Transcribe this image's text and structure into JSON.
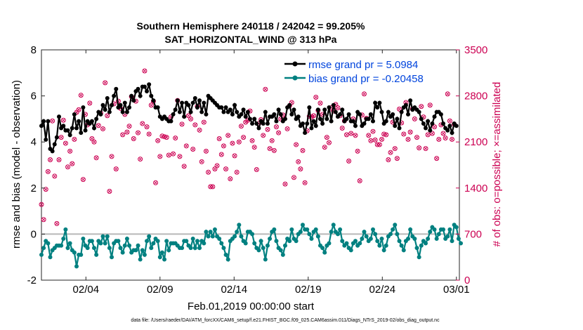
{
  "chart_data": {
    "type": "line",
    "title": [
      "Southern Hemisphere 240118 / 242042 = 99.205%",
      "SAT_HORIZONTAL_WIND @ 313 hPa"
    ],
    "xlabel": "Feb.01,2019 00:00:00 start",
    "ylabel_left": "rmse and bias (model - observation)",
    "ylabel_right": "# of obs: o=possible; ×=assimilated",
    "footer": "data file: /Users/raeder/DAI/ATM_forcXX/CAM6_setup/f.e21.FHIST_BGC.f09_025.CAM6assim.011/Diags_NTrS_2019-02/obs_diag_output.nc",
    "x_range": [
      0,
      28.2
    ],
    "ylim_left": [
      -2,
      8
    ],
    "ylim_right": [
      0,
      3500
    ],
    "x_ticks": [
      {
        "x": 3,
        "label": "02/04"
      },
      {
        "x": 8,
        "label": "02/09"
      },
      {
        "x": 13,
        "label": "02/14"
      },
      {
        "x": 18,
        "label": "02/19"
      },
      {
        "x": 23,
        "label": "02/24"
      },
      {
        "x": 28,
        "label": "03/01"
      }
    ],
    "y_ticks_left": [
      -2,
      0,
      2,
      4,
      6,
      8
    ],
    "y_ticks_right": [
      0,
      700,
      1400,
      2100,
      2800,
      3500
    ],
    "colors": {
      "rmse": "#000000",
      "bias": "#008080",
      "count": "#cc0052",
      "legend_text": "#0044dd",
      "zero_line": "#b8b8b8"
    },
    "series": [
      {
        "name": "rmse grand pr = 5.0984",
        "axis": "left",
        "values": [
          4.7,
          4.9,
          4.1,
          4.9,
          3.7,
          3.6,
          3.9,
          4.2,
          5.1,
          4.6,
          4.7,
          4.5,
          4.5,
          4.3,
          4.6,
          5.2,
          4.6,
          4.9,
          4.4,
          5.5,
          4.5,
          4.9,
          4.8,
          4.9,
          4.6,
          5.0,
          5.3,
          5.2,
          5.6,
          5.4,
          5.9,
          5.3,
          5.6,
          6.0,
          6.3,
          5.5,
          5.6,
          5.3,
          5.7,
          5.3,
          5.5,
          6.0,
          5.8,
          6.2,
          6.3,
          6.0,
          6.4,
          6.4,
          6.2,
          6.5,
          6.0,
          5.8,
          5.5,
          5.5,
          5.1,
          5.0,
          5.1,
          5.0,
          4.9,
          4.9,
          5.2,
          5.4,
          5.8,
          5.3,
          5.7,
          5.1,
          5.7,
          5.6,
          5.3,
          5.7,
          5.9,
          5.5,
          5.8,
          5.3,
          5.7,
          5.2,
          6.0,
          5.9,
          5.8,
          5.7,
          5.6,
          5.5,
          5.5,
          5.3,
          5.5,
          5.3,
          5.4,
          5.2,
          5.6,
          5.3,
          5.1,
          5.2,
          5.4,
          5.1,
          5.3,
          5.0,
          4.8,
          5.0,
          4.8,
          4.6,
          4.9,
          4.8,
          5.3,
          4.8,
          5.1,
          5.1,
          5.2,
          4.9,
          5.4,
          5.2,
          4.9,
          5.0,
          5.5,
          5.6,
          5.2,
          5.4,
          5.0,
          5.1,
          4.7,
          4.8,
          4.4,
          4.8,
          5.5,
          4.6,
          4.9,
          4.7,
          5.4,
          5.0,
          4.8,
          5.4,
          5.0,
          5.5,
          4.9,
          5.6,
          5.3,
          5.1,
          5.2,
          5.4,
          4.9,
          5.0,
          5.2,
          4.9,
          4.9,
          4.7,
          5.3,
          5.2,
          4.7,
          4.8,
          5.0,
          5.0,
          5.2,
          4.9,
          5.7,
          5.5,
          5.7,
          5.3,
          4.8,
          4.9,
          5.3,
          5.1,
          5.2,
          4.7,
          5.0,
          4.6,
          5.3,
          5.5,
          5.6,
          5.2,
          5.8,
          5.4,
          5.5,
          5.4,
          5.3,
          5.0,
          4.8,
          4.6,
          4.9,
          4.5,
          4.8,
          5.1,
          5.3,
          5.3,
          5.2,
          4.8,
          4.6,
          4.5,
          4.7,
          4.4,
          4.8,
          4.7
        ]
      },
      {
        "name": "bias grand pr = -0.20458",
        "axis": "left",
        "values": [
          -0.9,
          -0.6,
          -0.3,
          -0.4,
          -1.0,
          -0.7,
          -0.6,
          -0.5,
          -0.5,
          -0.5,
          -0.2,
          0.2,
          -0.6,
          -0.4,
          -0.7,
          -0.8,
          -1.4,
          -0.9,
          -0.9,
          -0.2,
          -0.5,
          -0.6,
          -0.3,
          -0.3,
          -0.6,
          -0.9,
          -0.3,
          -0.4,
          -0.1,
          -0.4,
          -0.1,
          -0.6,
          -1.0,
          -0.4,
          -0.3,
          -0.3,
          -0.6,
          -0.8,
          -0.5,
          -0.2,
          -0.5,
          -0.8,
          -0.7,
          -0.7,
          -0.5,
          -1.1,
          -0.7,
          -0.9,
          -0.3,
          -0.1,
          -0.6,
          -0.4,
          -0.2,
          -0.3,
          -1.0,
          -0.8,
          -1.1,
          -0.3,
          -0.7,
          -0.4,
          -0.4,
          -0.4,
          -0.5,
          -0.6,
          -0.6,
          -0.3,
          -0.3,
          -0.5,
          -0.6,
          -0.2,
          -0.6,
          -0.3,
          -0.6,
          -0.3,
          -0.4,
          0.1,
          -0.1,
          0.1,
          -0.1,
          0.2,
          -0.1,
          -0.2,
          -0.4,
          -0.6,
          -0.9,
          -1.1,
          -0.3,
          -0.2,
          -0.1,
          0.1,
          0.4,
          -0.1,
          -0.3,
          -0.4,
          0.1,
          0.1,
          0.0,
          -0.4,
          -0.6,
          -0.7,
          -0.3,
          -0.6,
          -1.1,
          -0.5,
          -0.2,
          0.1,
          0.2,
          -0.3,
          -0.6,
          -0.7,
          -0.9,
          -0.5,
          -0.2,
          -0.3,
          0.2,
          -0.2,
          -0.3,
          0.0,
          0.1,
          0.4,
          0.2,
          0.2,
          0.0,
          -0.2,
          0.1,
          0.2,
          -0.1,
          -0.5,
          -0.6,
          -0.8,
          -0.5,
          -0.4,
          0.1,
          0.4,
          0.1,
          0.0,
          0.2,
          -0.3,
          -0.5,
          -0.4,
          -0.6,
          -0.7,
          -0.4,
          -0.3,
          -0.5,
          -0.4,
          -0.2,
          0.1,
          -0.1,
          -0.3,
          -0.2,
          0.2,
          0.0,
          -0.3,
          -0.5,
          -0.2,
          -0.7,
          -0.5,
          -0.1,
          0.0,
          0.2,
          0.4,
          0.0,
          -0.3,
          -0.5,
          -0.7,
          -0.3,
          -0.2,
          0.2,
          -0.1,
          -0.2,
          -0.6,
          -1.0,
          -0.5,
          -0.3,
          -0.4,
          -0.2,
          0.1,
          0.3,
          0.2,
          -0.2,
          0.0,
          0.2,
          0.2,
          -0.2,
          -0.1,
          0.2,
          -0.3,
          0.4,
          0.3,
          -0.2,
          -0.4
        ]
      },
      {
        "name": "# of obs (possible / assimilated)",
        "axis": "right",
        "values": [
          1150,
          920,
          1380,
          1650,
          1830,
          2420,
          1580,
          860,
          1830,
          2170,
          2430,
          2080,
          1720,
          1960,
          1770,
          2140,
          2550,
          2590,
          2810,
          1530,
          2520,
          2360,
          2690,
          2150,
          2100,
          1860,
          2350,
          2540,
          2300,
          3000,
          2500,
          1350,
          1880,
          2680,
          1690,
          2720,
          2610,
          2210,
          2520,
          2250,
          2340,
          2790,
          2150,
          2720,
          2240,
          1840,
          2380,
          3180,
          2330,
          2220,
          2660,
          2720,
          1480,
          2120,
          1880,
          2190,
          2180,
          2170,
          1900,
          2480,
          1920,
          2160,
          2730,
          1880,
          2370,
          1730,
          2040,
          2500,
          2450,
          1990,
          2360,
          2640,
          2280,
          1800,
          2400,
          1960,
          1640,
          1420,
          1420,
          1690,
          1740,
          2150,
          1910,
          2040,
          1690,
          2200,
          1540,
          2080,
          1890,
          1640,
          2100,
          2340,
          2170,
          2400,
          2430,
          2570,
          2120,
          2020,
          1680,
          2380,
          2440,
          2200,
          2900,
          2290,
          2000,
          2120,
          1970,
          2330,
          2240,
          2450,
          2510,
          1460,
          2300,
          2650,
          2700,
          1560,
          2060,
          1800,
          1690,
          1970,
          1480,
          2270,
          2490,
          2480,
          2500,
          2780,
          2580,
          2690,
          2520,
          2020,
          2170,
          2090,
          2620,
          2570,
          2670,
          2620,
          2500,
          2310,
          2420,
          2210,
          1810,
          2230,
          2450,
          2200,
          1960,
          1510,
          2510,
          2830,
          2460,
          2200,
          2120,
          2260,
          2130,
          2060,
          2060,
          2140,
          2220,
          2210,
          1830,
          1940,
          2400,
          2000,
          1850,
          2600,
          2390,
          2220,
          2700,
          2140,
          2250,
          2600,
          2450,
          2170,
          2010,
          2640,
          2480,
          2000,
          2210,
          2660,
          2230,
          2330,
          1850,
          2140,
          2360,
          2230,
          2160,
          2830,
          2420,
          2140,
          2370
        ]
      }
    ],
    "legend": {
      "position": "top-right",
      "entries": [
        "rmse grand pr = 5.0984",
        "bias grand pr = -0.20458"
      ]
    }
  }
}
